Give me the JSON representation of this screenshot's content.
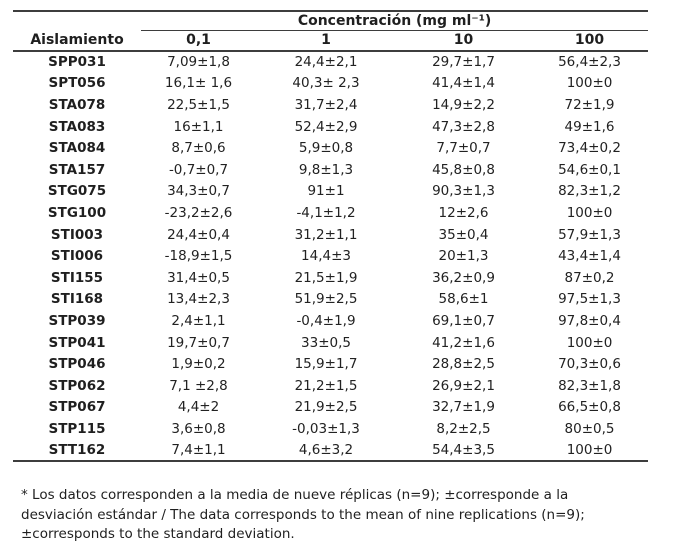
{
  "table": {
    "span_header": "Concentración (mg ml⁻¹)",
    "row_header": "Aislamiento",
    "col_headers": [
      "0,1",
      "1",
      "10",
      "100"
    ],
    "rows": [
      {
        "id": "SPP031",
        "values": [
          "7,09±1,8",
          "24,4±2,1",
          "29,7±1,7",
          "56,4±2,3"
        ]
      },
      {
        "id": "SPT056",
        "values": [
          "16,1± 1,6",
          "40,3± 2,3",
          "41,4±1,4",
          "100±0"
        ]
      },
      {
        "id": "STA078",
        "values": [
          "22,5±1,5",
          "31,7±2,4",
          "14,9±2,2",
          "72±1,9"
        ]
      },
      {
        "id": "STA083",
        "values": [
          "16±1,1",
          "52,4±2,9",
          "47,3±2,8",
          "49±1,6"
        ]
      },
      {
        "id": "STA084",
        "values": [
          "8,7±0,6",
          "5,9±0,8",
          "7,7±0,7",
          "73,4±0,2"
        ]
      },
      {
        "id": "STA157",
        "values": [
          "-0,7±0,7",
          "9,8±1,3",
          "45,8±0,8",
          "54,6±0,1"
        ]
      },
      {
        "id": "STG075",
        "values": [
          "34,3±0,7",
          "91±1",
          "90,3±1,3",
          "82,3±1,2"
        ]
      },
      {
        "id": "STG100",
        "values": [
          "-23,2±2,6",
          "-4,1±1,2",
          "12±2,6",
          "100±0"
        ]
      },
      {
        "id": "STI003",
        "values": [
          "24,4±0,4",
          "31,2±1,1",
          "35±0,4",
          "57,9±1,3"
        ]
      },
      {
        "id": "STI006",
        "values": [
          "-18,9±1,5",
          "14,4±3",
          "20±1,3",
          "43,4±1,4"
        ]
      },
      {
        "id": "STI155",
        "values": [
          "31,4±0,5",
          "21,5±1,9",
          "36,2±0,9",
          "87±0,2"
        ]
      },
      {
        "id": "STI168",
        "values": [
          "13,4±2,3",
          "51,9±2,5",
          "58,6±1",
          "97,5±1,3"
        ]
      },
      {
        "id": "STP039",
        "values": [
          "2,4±1,1",
          "-0,4±1,9",
          "69,1±0,7",
          "97,8±0,4"
        ]
      },
      {
        "id": "STP041",
        "values": [
          "19,7±0,7",
          "33±0,5",
          "41,2±1,6",
          "100±0"
        ]
      },
      {
        "id": "STP046",
        "values": [
          "1,9±0,2",
          "15,9±1,7",
          "28,8±2,5",
          "70,3±0,6"
        ]
      },
      {
        "id": "STP062",
        "values": [
          "7,1 ±2,8",
          "21,2±1,5",
          "26,9±2,1",
          "82,3±1,8"
        ]
      },
      {
        "id": "STP067",
        "values": [
          "4,4±2",
          "21,9±2,5",
          "32,7±1,9",
          "66,5±0,8"
        ]
      },
      {
        "id": "STP115",
        "values": [
          "3,6±0,8",
          "-0,03±1,3",
          "8,2±2,5",
          "80±0,5"
        ]
      },
      {
        "id": "STT162",
        "values": [
          "7,4±1,1",
          "4,6±3,2",
          "54,4±3,5",
          "100±0"
        ]
      }
    ]
  },
  "footnote": {
    "lines": [
      "* Los datos corresponden a la media de nueve réplicas (n=9); ±corresponde a la",
      "desviación estándar / The data corresponds to the mean of nine replications (n=9);",
      "±corresponds to the standard deviation."
    ]
  }
}
